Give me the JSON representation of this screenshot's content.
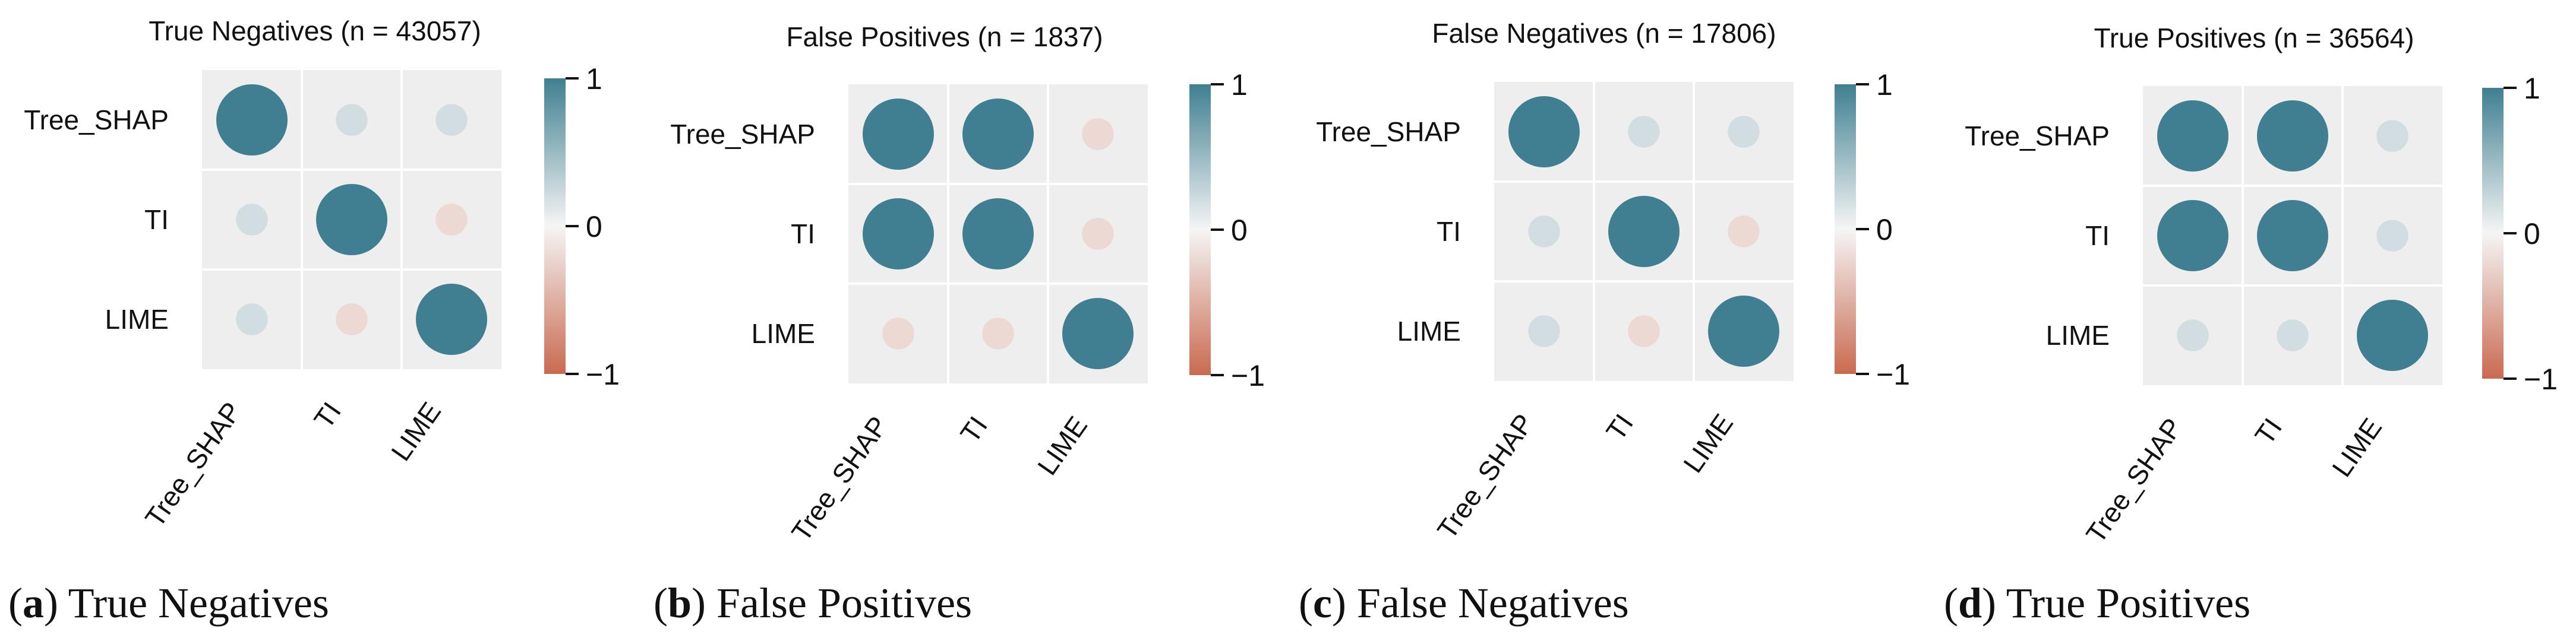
{
  "colors": {
    "positive": "#3f7f91",
    "neutral": "#f5f5f5",
    "negative": "#c96a50",
    "panel_bg": "#eeeeee",
    "grid": "#ffffff"
  },
  "chart_data": [
    {
      "type": "heatmap",
      "subtype": "correlation-circles",
      "title": "True Negatives (n = 43057)",
      "caption_letter": "a",
      "caption_text": "True Negatives",
      "rows": [
        "Tree_SHAP",
        "TI",
        "LIME"
      ],
      "cols": [
        "Tree_SHAP",
        "TI",
        "LIME"
      ],
      "values": [
        [
          1.0,
          0.2,
          0.2
        ],
        [
          0.2,
          1.0,
          -0.2
        ],
        [
          0.2,
          -0.2,
          1.0
        ]
      ],
      "colorbar": {
        "range": [
          -1,
          1
        ],
        "ticks": [
          {
            "v": 1,
            "label": "1"
          },
          {
            "v": 0,
            "label": "0"
          },
          {
            "v": -1,
            "label": "−1"
          }
        ]
      }
    },
    {
      "type": "heatmap",
      "subtype": "correlation-circles",
      "title": "False Positives (n = 1837)",
      "caption_letter": "b",
      "caption_text": "False Positives",
      "rows": [
        "Tree_SHAP",
        "TI",
        "LIME"
      ],
      "cols": [
        "Tree_SHAP",
        "TI",
        "LIME"
      ],
      "values": [
        [
          1.0,
          1.0,
          -0.2
        ],
        [
          1.0,
          1.0,
          -0.2
        ],
        [
          -0.2,
          -0.2,
          1.0
        ]
      ],
      "colorbar": {
        "range": [
          -1,
          1
        ],
        "ticks": [
          {
            "v": 1,
            "label": "1"
          },
          {
            "v": 0,
            "label": "0"
          },
          {
            "v": -1,
            "label": "−1"
          }
        ]
      }
    },
    {
      "type": "heatmap",
      "subtype": "correlation-circles",
      "title": "False Negatives (n = 17806)",
      "caption_letter": "c",
      "caption_text": "False Negatives",
      "rows": [
        "Tree_SHAP",
        "TI",
        "LIME"
      ],
      "cols": [
        "Tree_SHAP",
        "TI",
        "LIME"
      ],
      "values": [
        [
          1.0,
          0.2,
          0.2
        ],
        [
          0.2,
          1.0,
          -0.2
        ],
        [
          0.2,
          -0.2,
          1.0
        ]
      ],
      "colorbar": {
        "range": [
          -1,
          1
        ],
        "ticks": [
          {
            "v": 1,
            "label": "1"
          },
          {
            "v": 0,
            "label": "0"
          },
          {
            "v": -1,
            "label": "−1"
          }
        ]
      }
    },
    {
      "type": "heatmap",
      "subtype": "correlation-circles",
      "title": "True Positives (n = 36564)",
      "caption_letter": "d",
      "caption_text": "True Positives",
      "rows": [
        "Tree_SHAP",
        "TI",
        "LIME"
      ],
      "cols": [
        "Tree_SHAP",
        "TI",
        "LIME"
      ],
      "values": [
        [
          1.0,
          1.0,
          0.2
        ],
        [
          1.0,
          1.0,
          0.2
        ],
        [
          0.2,
          0.2,
          1.0
        ]
      ],
      "colorbar": {
        "range": [
          -1,
          1
        ],
        "ticks": [
          {
            "v": 1,
            "label": "1"
          },
          {
            "v": 0,
            "label": "0"
          },
          {
            "v": -1,
            "label": "−1"
          }
        ]
      }
    }
  ]
}
